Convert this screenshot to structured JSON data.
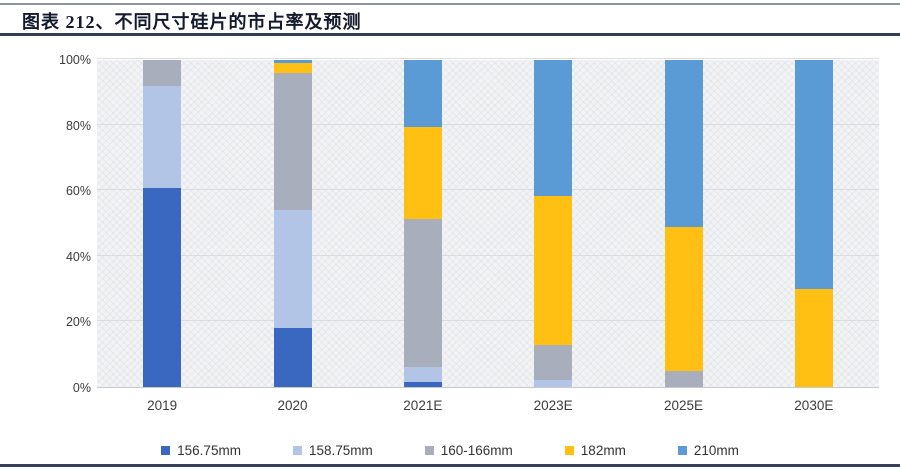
{
  "header": {
    "title": "图表 212、不同尺寸硅片的市占率及预测"
  },
  "chart_data": {
    "type": "bar",
    "stacked": true,
    "percent_stacked": true,
    "title": "不同尺寸硅片的市占率及预测",
    "xlabel": "",
    "ylabel": "",
    "ylim": [
      0,
      100
    ],
    "y_ticks": [
      "0%",
      "20%",
      "40%",
      "60%",
      "80%",
      "100%"
    ],
    "grid": true,
    "legend_position": "bottom",
    "categories": [
      "2019",
      "2020",
      "2021E",
      "2023E",
      "2025E",
      "2030E"
    ],
    "series": [
      {
        "name": "156.75mm",
        "color": "#3A68C0",
        "values": [
          61,
          18,
          1.5,
          0,
          0,
          0
        ]
      },
      {
        "name": "158.75mm",
        "color": "#B2C5E6",
        "values": [
          31,
          36,
          4.5,
          2,
          0,
          0
        ]
      },
      {
        "name": "160-166mm",
        "color": "#A8AEBB",
        "values": [
          8,
          42,
          45.5,
          11,
          5,
          0
        ]
      },
      {
        "name": "182mm",
        "color": "#FFC013",
        "values": [
          0,
          3,
          28,
          45.5,
          44,
          30
        ]
      },
      {
        "name": "210mm",
        "color": "#5B9BD5",
        "values": [
          0,
          1,
          20.5,
          41.5,
          51,
          70
        ]
      }
    ]
  }
}
